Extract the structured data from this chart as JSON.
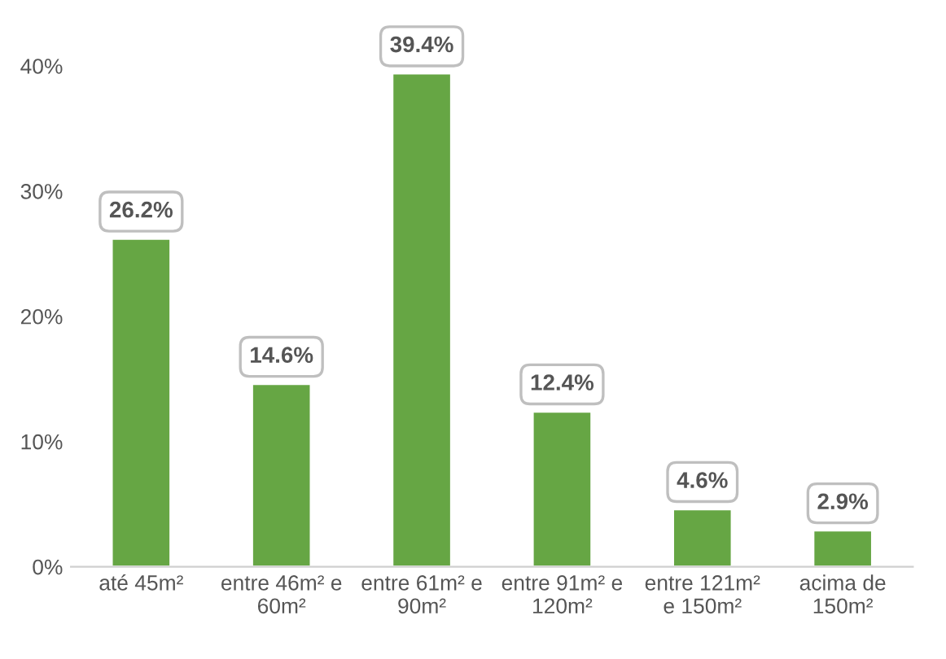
{
  "chart_data": {
    "type": "bar",
    "categories": [
      "até 45m²",
      "entre 46m² e 60m²",
      "entre 61m² e 90m²",
      "entre 91m² e 120m²",
      "entre 121m² e 150m²",
      "acima de 150m²"
    ],
    "values": [
      26.2,
      14.6,
      39.4,
      12.4,
      4.6,
      2.9
    ],
    "value_labels": [
      "26.2%",
      "14.6%",
      "39.4%",
      "12.4%",
      "4.6%",
      "2.9%"
    ],
    "color": "#66a644",
    "ylim": [
      0,
      40
    ],
    "yticks": [
      {
        "value": 0,
        "label": "0%"
      },
      {
        "value": 10,
        "label": "10%"
      },
      {
        "value": 20,
        "label": "20%"
      },
      {
        "value": 30,
        "label": "30%"
      },
      {
        "value": 40,
        "label": "40%"
      }
    ],
    "grid": false
  }
}
